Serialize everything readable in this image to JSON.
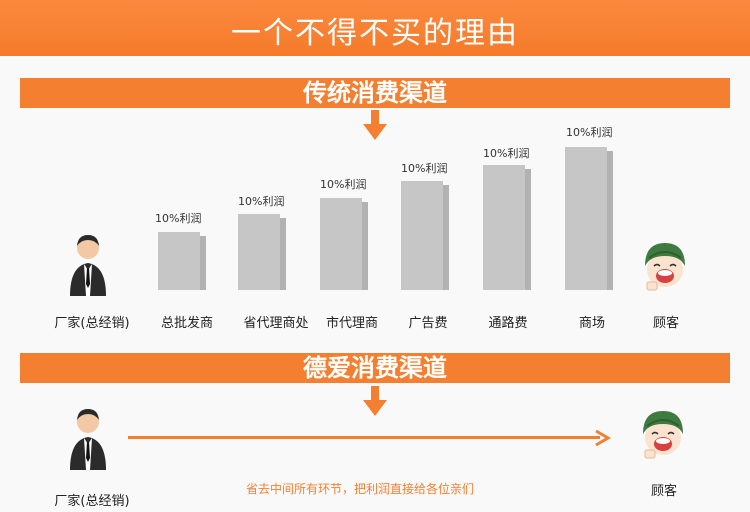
{
  "header": {
    "title": "一个不得不买的理由"
  },
  "traditional": {
    "title": "传统消费渠道",
    "start_label": "厂家(总经销)",
    "end_label": "顾客",
    "bars": [
      {
        "label": "总批发商",
        "profit": "10%利润"
      },
      {
        "label": "省代理商处",
        "profit": "10%利润"
      },
      {
        "label": "市代理商",
        "profit": "10%利润"
      },
      {
        "label": "广告费",
        "profit": "10%利润"
      },
      {
        "label": "通路费",
        "profit": "10%利润"
      },
      {
        "label": "商场",
        "profit": "10%利润"
      }
    ]
  },
  "deai": {
    "title": "德爱消费渠道",
    "start_label": "厂家(总经销)",
    "end_label": "顾客",
    "note": "省去中间所有环节，把利润直接给各位亲们"
  },
  "colors": {
    "accent": "#f57f31",
    "bar": "#c6c6c6"
  },
  "icons": {
    "businessman": "businessman-icon",
    "customer": "customer-kid-icon",
    "arrow": "down-arrow-icon"
  }
}
